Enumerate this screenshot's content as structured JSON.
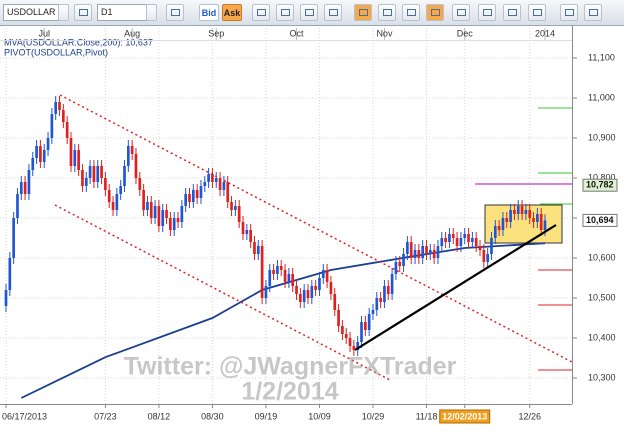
{
  "toolbar": {
    "symbol": "USDOLLAR",
    "timeframe": "D1",
    "bid": "Bid",
    "ask": "Ask"
  },
  "watermark": [
    "Twitter: @JWagnerFXTrader",
    "1/2/2014"
  ],
  "chart_data": {
    "type": "candlestick",
    "legend": [
      "MVA(USDOLLAR.Close,200): 10,637",
      "PIVOT(USDOLLAR,Pivot)"
    ],
    "up_color": "#1f56d6",
    "down_color": "#e0201e",
    "ylim": [
      10235,
      11175
    ],
    "yticks": [
      {
        "value": 10300,
        "label": "10,300"
      },
      {
        "value": 10400,
        "label": "10,400"
      },
      {
        "value": 10500,
        "label": "10,500"
      },
      {
        "value": 10600,
        "label": "10,600"
      },
      {
        "value": 10700,
        "label": "10,700"
      },
      {
        "value": 10800,
        "label": "10,800"
      },
      {
        "value": 10900,
        "label": "10,900"
      },
      {
        "value": 11000,
        "label": "11,000"
      },
      {
        "value": 11100,
        "label": "11,100"
      }
    ],
    "grid": true,
    "xticks": [
      {
        "value": "2013-06-17",
        "label": "06/17/2013"
      },
      {
        "value": "2013-07-23",
        "label": "07/23"
      },
      {
        "value": "2013-08-12",
        "label": "08/12"
      },
      {
        "value": "2013-08-30",
        "label": "08/30"
      },
      {
        "value": "2013-09-19",
        "label": "09/19"
      },
      {
        "value": "2013-10-09",
        "label": "10/09"
      },
      {
        "value": "2013-10-29",
        "label": "10/29"
      },
      {
        "value": "2013-11-18",
        "label": "11/18"
      },
      {
        "value": "2013-12-02",
        "label": "12/02/2013",
        "highlight": true
      },
      {
        "value": "2013-12-26",
        "label": "12/26"
      }
    ],
    "month_ticks": [
      {
        "value": "2013-07-01",
        "label": "Jul"
      },
      {
        "value": "2013-08-01",
        "label": "Aug"
      },
      {
        "value": "2013-09-02",
        "label": "Sep"
      },
      {
        "value": "2013-10-01",
        "label": "Oct"
      },
      {
        "value": "2013-11-01",
        "label": "Nov"
      },
      {
        "value": "2013-12-02",
        "label": "Dec"
      },
      {
        "value": "2014-01-02",
        "label": "2014"
      }
    ],
    "price_labels": [
      {
        "value": 10782,
        "label": "10,782",
        "color": "#dff2cf"
      },
      {
        "value": 10694,
        "label": "10,694",
        "color": "#ffffff"
      }
    ],
    "x": [
      "2013-06-17",
      "2013-06-18",
      "2013-06-19",
      "2013-06-20",
      "2013-06-21",
      "2013-06-24",
      "2013-06-25",
      "2013-06-26",
      "2013-06-27",
      "2013-06-28",
      "2013-07-01",
      "2013-07-02",
      "2013-07-03",
      "2013-07-04",
      "2013-07-05",
      "2013-07-08",
      "2013-07-09",
      "2013-07-10",
      "2013-07-11",
      "2013-07-12",
      "2013-07-15",
      "2013-07-16",
      "2013-07-17",
      "2013-07-18",
      "2013-07-19",
      "2013-07-22",
      "2013-07-23",
      "2013-07-24",
      "2013-07-25",
      "2013-07-26",
      "2013-07-29",
      "2013-07-30",
      "2013-07-31",
      "2013-08-01",
      "2013-08-02",
      "2013-08-05",
      "2013-08-06",
      "2013-08-07",
      "2013-08-08",
      "2013-08-09",
      "2013-08-12",
      "2013-08-13",
      "2013-08-14",
      "2013-08-15",
      "2013-08-16",
      "2013-08-19",
      "2013-08-20",
      "2013-08-21",
      "2013-08-22",
      "2013-08-23",
      "2013-08-26",
      "2013-08-27",
      "2013-08-28",
      "2013-08-29",
      "2013-08-30",
      "2013-09-02",
      "2013-09-03",
      "2013-09-04",
      "2013-09-05",
      "2013-09-06",
      "2013-09-09",
      "2013-09-10",
      "2013-09-11",
      "2013-09-12",
      "2013-09-13",
      "2013-09-16",
      "2013-09-17",
      "2013-09-18",
      "2013-09-19",
      "2013-09-20",
      "2013-09-23",
      "2013-09-24",
      "2013-09-25",
      "2013-09-26",
      "2013-09-27",
      "2013-09-30",
      "2013-10-01",
      "2013-10-02",
      "2013-10-03",
      "2013-10-04",
      "2013-10-07",
      "2013-10-08",
      "2013-10-09",
      "2013-10-10",
      "2013-10-11",
      "2013-10-14",
      "2013-10-15",
      "2013-10-16",
      "2013-10-17",
      "2013-10-18",
      "2013-10-21",
      "2013-10-22",
      "2013-10-23",
      "2013-10-24",
      "2013-10-25",
      "2013-10-28",
      "2013-10-29",
      "2013-10-30",
      "2013-10-31",
      "2013-11-01",
      "2013-11-04",
      "2013-11-05",
      "2013-11-06",
      "2013-11-07",
      "2013-11-08",
      "2013-11-11",
      "2013-11-12",
      "2013-11-13",
      "2013-11-14",
      "2013-11-15",
      "2013-11-18",
      "2013-11-19",
      "2013-11-20",
      "2013-11-21",
      "2013-11-22",
      "2013-11-25",
      "2013-11-26",
      "2013-11-27",
      "2013-11-28",
      "2013-11-29",
      "2013-12-02",
      "2013-12-03",
      "2013-12-04",
      "2013-12-05",
      "2013-12-06",
      "2013-12-09",
      "2013-12-10",
      "2013-12-11",
      "2013-12-12",
      "2013-12-13",
      "2013-12-16",
      "2013-12-17",
      "2013-12-18",
      "2013-12-19",
      "2013-12-20",
      "2013-12-23",
      "2013-12-24",
      "2013-12-26",
      "2013-12-27",
      "2013-12-30",
      "2013-12-31",
      "2014-01-02"
    ],
    "open": [
      10480,
      10520,
      10600,
      10700,
      10760,
      10790,
      10760,
      10820,
      10850,
      10880,
      10840,
      10870,
      10900,
      10960,
      10990,
      10970,
      10940,
      10900,
      10830,
      10870,
      10820,
      10780,
      10800,
      10830,
      10790,
      10830,
      10800,
      10770,
      10740,
      10720,
      10760,
      10780,
      10830,
      10880,
      10860,
      10800,
      10770,
      10720,
      10740,
      10700,
      10730,
      10680,
      10720,
      10700,
      10670,
      10700,
      10690,
      10730,
      10760,
      10740,
      10770,
      10750,
      10780,
      10790,
      10810,
      10790,
      10800,
      10770,
      10790,
      10740,
      10720,
      10730,
      10690,
      10660,
      10670,
      10640,
      10610,
      10630,
      10500,
      10530,
      10570,
      10560,
      10580,
      10570,
      10540,
      10560,
      10530,
      10510,
      10490,
      10520,
      10500,
      10530,
      10520,
      10550,
      10570,
      10540,
      10510,
      10470,
      10430,
      10410,
      10400,
      10380,
      10370,
      10390,
      10440,
      10420,
      10460,
      10470,
      10500,
      10490,
      10530,
      10510,
      10560,
      10590,
      10580,
      10610,
      10640,
      10600,
      10620,
      10600,
      10630,
      10610,
      10620,
      10600,
      10630,
      10650,
      10640,
      10660,
      10650,
      10630,
      10650,
      10660,
      10640,
      10650,
      10630,
      10620,
      10590,
      10610,
      10650,
      10680,
      10670,
      10700,
      10690,
      10720,
      10710,
      10730,
      10710,
      10720,
      10700,
      10690,
      10710,
      10670
    ],
    "high": [
      10535,
      10615,
      10715,
      10775,
      10805,
      10805,
      10835,
      10865,
      10895,
      10895,
      10885,
      10915,
      10975,
      11005,
      11005,
      10985,
      10955,
      10915,
      10885,
      10885,
      10835,
      10815,
      10845,
      10845,
      10845,
      10845,
      10815,
      10785,
      10755,
      10775,
      10795,
      10845,
      10895,
      10895,
      10875,
      10815,
      10785,
      10755,
      10755,
      10745,
      10745,
      10735,
      10735,
      10715,
      10715,
      10715,
      10745,
      10775,
      10775,
      10785,
      10785,
      10795,
      10805,
      10825,
      10825,
      10815,
      10815,
      10805,
      10805,
      10755,
      10745,
      10745,
      10705,
      10685,
      10685,
      10655,
      10645,
      10645,
      10545,
      10585,
      10585,
      10595,
      10595,
      10585,
      10575,
      10575,
      10545,
      10525,
      10535,
      10535,
      10545,
      10545,
      10565,
      10585,
      10585,
      10555,
      10525,
      10485,
      10445,
      10425,
      10415,
      10395,
      10405,
      10455,
      10455,
      10475,
      10485,
      10515,
      10515,
      10545,
      10545,
      10575,
      10605,
      10605,
      10625,
      10655,
      10655,
      10635,
      10635,
      10645,
      10645,
      10635,
      10635,
      10645,
      10665,
      10665,
      10675,
      10675,
      10665,
      10665,
      10675,
      10675,
      10665,
      10665,
      10645,
      10635,
      10625,
      10665,
      10695,
      10695,
      10715,
      10715,
      10735,
      10735,
      10745,
      10745,
      10735,
      10735,
      10715,
      10725,
      10725,
      10709
    ],
    "low": [
      10465,
      10505,
      10585,
      10685,
      10745,
      10745,
      10745,
      10805,
      10835,
      10825,
      10825,
      10855,
      10885,
      10945,
      10955,
      10925,
      10885,
      10815,
      10815,
      10805,
      10765,
      10765,
      10785,
      10775,
      10775,
      10785,
      10755,
      10725,
      10705,
      10705,
      10745,
      10765,
      10815,
      10845,
      10785,
      10755,
      10705,
      10705,
      10685,
      10685,
      10665,
      10665,
      10685,
      10655,
      10655,
      10675,
      10675,
      10715,
      10725,
      10725,
      10735,
      10735,
      10765,
      10775,
      10775,
      10775,
      10755,
      10755,
      10725,
      10705,
      10705,
      10675,
      10645,
      10645,
      10625,
      10595,
      10595,
      10485,
      10485,
      10515,
      10545,
      10545,
      10555,
      10525,
      10525,
      10515,
      10495,
      10475,
      10475,
      10485,
      10485,
      10505,
      10505,
      10535,
      10525,
      10495,
      10455,
      10415,
      10395,
      10385,
      10365,
      10355,
      10355,
      10375,
      10405,
      10405,
      10445,
      10455,
      10475,
      10475,
      10495,
      10495,
      10545,
      10565,
      10565,
      10595,
      10585,
      10585,
      10585,
      10585,
      10595,
      10595,
      10585,
      10585,
      10615,
      10625,
      10625,
      10635,
      10615,
      10615,
      10635,
      10625,
      10625,
      10615,
      10605,
      10575,
      10575,
      10595,
      10635,
      10655,
      10655,
      10675,
      10675,
      10695,
      10695,
      10695,
      10695,
      10685,
      10675,
      10675,
      10655,
      10655
    ],
    "close": [
      10520,
      10600,
      10700,
      10760,
      10790,
      10760,
      10820,
      10850,
      10880,
      10840,
      10870,
      10900,
      10960,
      10990,
      10970,
      10940,
      10900,
      10830,
      10870,
      10820,
      10780,
      10800,
      10830,
      10790,
      10830,
      10800,
      10770,
      10740,
      10720,
      10760,
      10780,
      10830,
      10880,
      10860,
      10800,
      10770,
      10720,
      10740,
      10700,
      10730,
      10680,
      10720,
      10700,
      10670,
      10700,
      10690,
      10730,
      10760,
      10740,
      10770,
      10750,
      10780,
      10790,
      10810,
      10790,
      10800,
      10770,
      10790,
      10740,
      10720,
      10730,
      10690,
      10660,
      10670,
      10640,
      10610,
      10630,
      10500,
      10530,
      10570,
      10560,
      10580,
      10570,
      10540,
      10560,
      10530,
      10510,
      10490,
      10520,
      10500,
      10530,
      10520,
      10550,
      10570,
      10540,
      10510,
      10470,
      10430,
      10410,
      10400,
      10380,
      10370,
      10390,
      10440,
      10420,
      10460,
      10470,
      10500,
      10490,
      10530,
      10510,
      10560,
      10590,
      10580,
      10610,
      10640,
      10600,
      10620,
      10600,
      10630,
      10610,
      10620,
      10600,
      10630,
      10650,
      10640,
      10660,
      10650,
      10630,
      10650,
      10660,
      10640,
      10650,
      10630,
      10620,
      10590,
      10610,
      10650,
      10680,
      10670,
      10700,
      10690,
      10720,
      10710,
      10730,
      10710,
      10720,
      10700,
      10690,
      10710,
      10670,
      10694
    ],
    "mva": {
      "color": "#1a3f8f",
      "x": [
        "2013-06-21",
        "2013-07-23",
        "2013-08-30",
        "2013-09-18",
        "2013-10-14",
        "2013-11-11",
        "2013-12-02",
        "2014-01-02"
      ],
      "values": [
        10250,
        10352,
        10450,
        10520,
        10570,
        10602,
        10625,
        10637
      ]
    }
  }
}
